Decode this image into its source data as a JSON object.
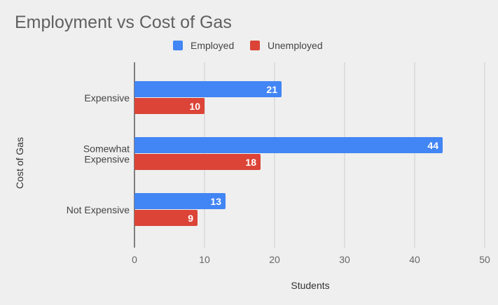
{
  "chart_data": {
    "type": "bar",
    "orientation": "horizontal",
    "title": "Employment vs Cost of Gas",
    "xlabel": "Students",
    "ylabel": "Cost of Gas",
    "xlim": [
      0,
      50
    ],
    "xticks": [
      0,
      10,
      20,
      30,
      40,
      50
    ],
    "grid": true,
    "legend_position": "top",
    "categories": [
      [
        "Expensive"
      ],
      [
        "Somewhat",
        "Expensive"
      ],
      [
        "Not Expensive"
      ]
    ],
    "series": [
      {
        "name": "Employed",
        "color": "#4285f4",
        "values": [
          21,
          44,
          13
        ]
      },
      {
        "name": "Unemployed",
        "color": "#db4437",
        "values": [
          10,
          18,
          9
        ]
      }
    ]
  }
}
